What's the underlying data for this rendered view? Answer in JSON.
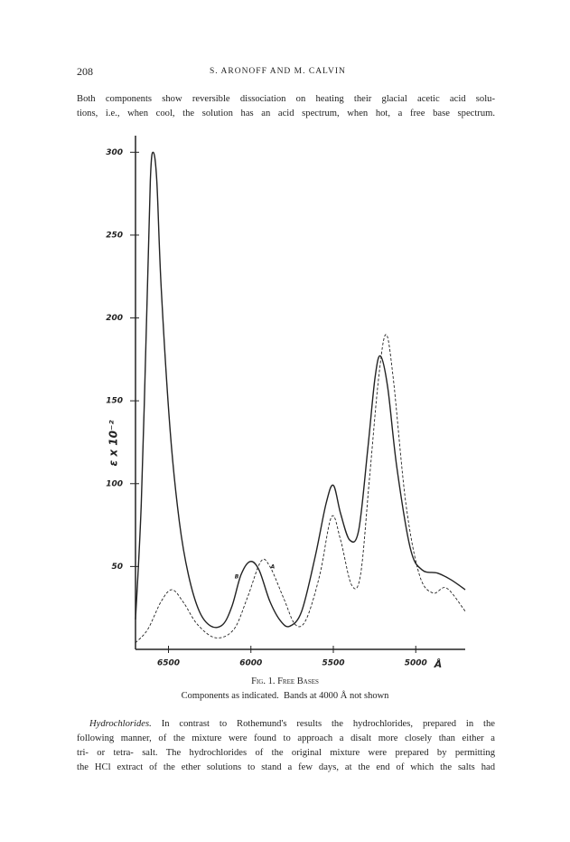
{
  "header": {
    "page_number": "208",
    "running_title": "S. ARONOFF AND M. CALVIN"
  },
  "paragraph_1": {
    "lines": [
      "Both components show reversible dissociation on heating their glacial acetic acid solu-",
      "tions, i.e., when cool, the solution has an acid spectrum, when hot, a free base spectrum."
    ]
  },
  "chart_data": {
    "type": "line",
    "ylabel": "ε x 10⁻²",
    "xlabel": "Å",
    "xlim": [
      6700,
      4700
    ],
    "xticks": [
      6500,
      6000,
      5500,
      5000
    ],
    "ylim": [
      0,
      310
    ],
    "yticks": [
      50,
      100,
      150,
      200,
      250,
      300
    ],
    "grid": false,
    "series": [
      {
        "name": "A",
        "color": "#222222",
        "line_style": "dashed",
        "x": [
          6700,
          6626,
          6544,
          6478,
          6407,
          6324,
          6214,
          6104,
          6022,
          5940,
          5885,
          5802,
          5731,
          5665,
          5582,
          5511,
          5456,
          5390,
          5335,
          5280,
          5225,
          5181,
          5137,
          5060,
          4978,
          4896,
          4813,
          4700
        ],
        "values": [
          4,
          12,
          29,
          36,
          28,
          15,
          7,
          12,
          31,
          53,
          50,
          31,
          15,
          18,
          45,
          80,
          66,
          39,
          45,
          104,
          164,
          190,
          164,
          88,
          45,
          34,
          37,
          23
        ]
      },
      {
        "name": "B",
        "color": "#222222",
        "line_style": "solid",
        "x": [
          6700,
          6665,
          6632,
          6610,
          6593,
          6571,
          6544,
          6489,
          6434,
          6379,
          6313,
          6242,
          6170,
          6115,
          6060,
          6005,
          5951,
          5885,
          5819,
          5764,
          5692,
          5610,
          5544,
          5500,
          5456,
          5401,
          5346,
          5291,
          5247,
          5214,
          5170,
          5115,
          5033,
          4962,
          4868,
          4786,
          4700
        ],
        "values": [
          18,
          88,
          202,
          283,
          300,
          283,
          218,
          131,
          77,
          45,
          23,
          14,
          15,
          26,
          45,
          53,
          48,
          29,
          17,
          14,
          23,
          56,
          88,
          99,
          82,
          66,
          72,
          121,
          164,
          177,
          158,
          110,
          61,
          48,
          46,
          42,
          36
        ]
      }
    ]
  },
  "figure": {
    "caption_title": "Fig. 1. Free Bases",
    "caption_text": "Components as indicated.  Bands at 4000 Å not shown"
  },
  "paragraph_2": {
    "run_in_heading": "Hydrochlorides.",
    "lines": [
      "In contrast to Rothemund's results the hydrochlorides, prepared in the",
      "following manner, of the mixture were found to approach a disalt more closely than either a",
      "tri- or tetra- salt.  The hydrochlorides of the original mixture were prepared by permitting",
      "the HCl extract of the ether solutions to stand a few days, at the end of which the salts had"
    ]
  }
}
